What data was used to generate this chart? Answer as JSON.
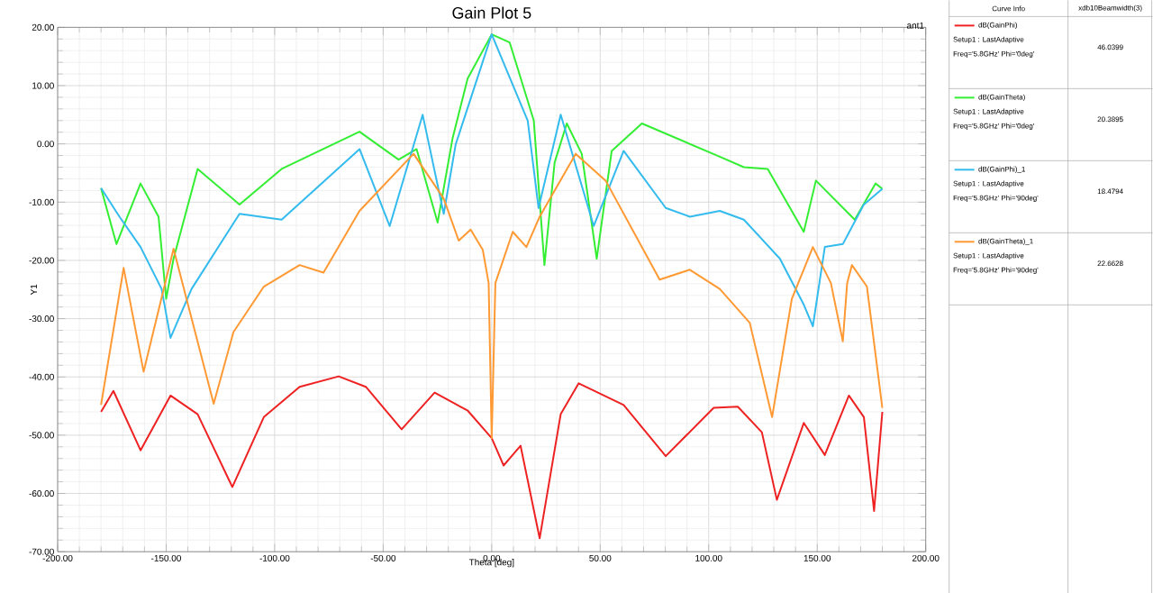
{
  "chart_data": {
    "type": "line",
    "title": "Gain Plot 5",
    "xlabel": "Theta [deg]",
    "ylabel": "Y1",
    "xlim": [
      -200,
      200
    ],
    "ylim": [
      -70,
      20
    ],
    "xticks": [
      {
        "value": -200,
        "label": "-200.00"
      },
      {
        "value": -150,
        "label": "-150.00"
      },
      {
        "value": -100,
        "label": "-100.00"
      },
      {
        "value": -50,
        "label": "-50.00"
      },
      {
        "value": 0,
        "label": "0.00"
      },
      {
        "value": 50,
        "label": "50.00"
      },
      {
        "value": 100,
        "label": "100.00"
      },
      {
        "value": 150,
        "label": "150.00"
      },
      {
        "value": 200,
        "label": "200.00"
      }
    ],
    "yticks": [
      {
        "value": -70,
        "label": "-70.00"
      },
      {
        "value": -60,
        "label": "-60.00"
      },
      {
        "value": -50,
        "label": "-50.00"
      },
      {
        "value": -40,
        "label": "-40.00"
      },
      {
        "value": -30,
        "label": "-30.00"
      },
      {
        "value": -20,
        "label": "-20.00"
      },
      {
        "value": -10,
        "label": "-10.00"
      },
      {
        "value": 0,
        "label": "0.00"
      },
      {
        "value": 10,
        "label": "10.00"
      },
      {
        "value": 20,
        "label": "20.00"
      }
    ],
    "grid": true,
    "legend": "right",
    "marker": "none",
    "line_style": "solid",
    "annotations": [
      "ant1",
      "Curve Info",
      "xdb10Beamwidth(3)",
      "Setup1 : LastAdaptive",
      "Freq='5.8GHz' Phi='0deg'",
      "46.0399",
      "Setup1 : LastAdaptive",
      "Freq='5.8GHz' Phi='0deg'",
      "20.3895",
      "Setup1 : LastAdaptive",
      "Freq='5.8GHz' Phi='90deg'",
      "18.4794",
      "Setup1 : LastAdaptive",
      "Freq='5.8GHz' Phi='90deg'",
      "22.6628"
    ],
    "series": [
      {
        "name": "dB(GainPhi)",
        "color": "#ee2222",
        "x": [
          -180,
          -174.3,
          -161.8,
          -148,
          -135.5,
          -119.5,
          -105,
          -88.5,
          -70.5,
          -58,
          -41.5,
          -26.3,
          -11,
          0,
          5.5,
          13.3,
          22.1,
          31.8,
          40.1,
          60.8,
          80.2,
          102.3,
          113.4,
          124.5,
          131.4,
          143.8,
          153.5,
          164.6,
          171.5,
          176.2,
          180
        ],
        "values": [
          -46.0,
          -42.4,
          -52.6,
          -43.2,
          -46.4,
          -58.9,
          -46.9,
          -41.7,
          -39.9,
          -41.7,
          -49.0,
          -42.7,
          -45.8,
          -50.5,
          -55.2,
          -51.8,
          -67.7,
          -46.4,
          -41.1,
          -44.8,
          -53.6,
          -45.3,
          -45.1,
          -49.5,
          -61.1,
          -47.9,
          -53.4,
          -43.2,
          -46.9,
          -63.0,
          -46.0
        ]
      },
      {
        "name": "dB(GainTheta)",
        "color": "#33ee33",
        "x": [
          -180,
          -172.9,
          -161.8,
          -153.5,
          -150,
          -146.6,
          -135.5,
          -116.2,
          -96.8,
          -60.9,
          -42.9,
          -34.6,
          -24.9,
          -18,
          -11.1,
          0,
          8.3,
          19.4,
          24.3,
          29,
          34.6,
          41.5,
          48.4,
          55.3,
          69.2,
          105.1,
          116.2,
          127.2,
          143.8,
          149.4,
          167.3,
          176.9,
          180
        ],
        "values": [
          -7.6,
          -17.2,
          -6.8,
          -12.5,
          -26.6,
          -19.7,
          -4.3,
          -10.4,
          -4.3,
          2.1,
          -2.7,
          -0.9,
          -13.5,
          1.0,
          11.2,
          18.8,
          17.4,
          4.0,
          -20.8,
          -3.2,
          3.5,
          -1.7,
          -19.7,
          -1.2,
          3.5,
          -2.2,
          -4.0,
          -4.3,
          -15.1,
          -6.3,
          -13.0,
          -6.8,
          -7.7
        ]
      },
      {
        "name": "dB(GainPhi)_1",
        "color": "#33bbee",
        "x": [
          -180,
          -171.5,
          -161.8,
          -152.1,
          -148,
          -138.3,
          -116.2,
          -96.8,
          -60.9,
          -47,
          -31.8,
          -22.1,
          -16.6,
          0,
          16.6,
          21.6,
          31.8,
          47,
          60.8,
          80.2,
          91.3,
          105.1,
          116.2,
          132.8,
          143.8,
          148,
          153.5,
          161.8,
          171.5,
          180
        ],
        "values": [
          -7.6,
          -12.5,
          -17.7,
          -24.9,
          -33.3,
          -24.9,
          -12.0,
          -13.0,
          -0.9,
          -14.1,
          5.0,
          -12.0,
          -0.1,
          18.8,
          4.0,
          -11.0,
          5.0,
          -14.1,
          -1.2,
          -11.0,
          -12.5,
          -11.5,
          -13.0,
          -19.7,
          -27.6,
          -31.3,
          -17.7,
          -17.2,
          -10.4,
          -7.7
        ]
      },
      {
        "name": "dB(GainTheta)_1",
        "color": "#ff9933",
        "x": [
          -180,
          -169.6,
          -160.4,
          -146.6,
          -128.1,
          -119,
          -105,
          -88.5,
          -77.5,
          -60.9,
          -36,
          -22.1,
          -15.2,
          -9.7,
          -4.1,
          -1.4,
          0,
          1.7,
          9.7,
          16,
          22.1,
          38.7,
          52.5,
          77.4,
          91.3,
          105.1,
          118.9,
          129.2,
          138.3,
          148,
          156.3,
          161.8,
          163.8,
          166,
          172.9,
          180
        ],
        "values": [
          -44.8,
          -21.3,
          -39.1,
          -18.0,
          -44.6,
          -32.3,
          -24.5,
          -20.8,
          -22.1,
          -11.5,
          -1.7,
          -9.4,
          -16.6,
          -14.7,
          -18.2,
          -23.9,
          -50.5,
          -23.9,
          -15.1,
          -17.7,
          -12.5,
          -1.7,
          -6.3,
          -23.3,
          -21.6,
          -24.9,
          -30.7,
          -46.9,
          -26.6,
          -17.7,
          -23.9,
          -33.9,
          -23.9,
          -20.8,
          -24.5,
          -45.3
        ]
      }
    ]
  }
}
